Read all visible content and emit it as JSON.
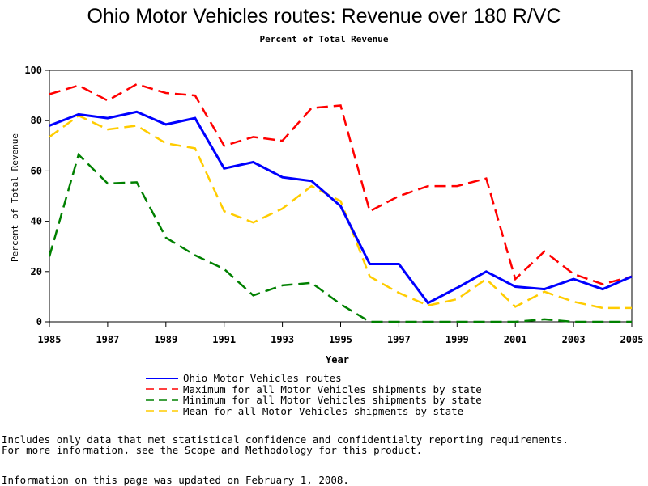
{
  "chart_data": {
    "type": "line",
    "title": "Ohio Motor Vehicles routes: Revenue over 180 R/VC",
    "subtitle": "Percent of Total Revenue",
    "xlabel": "Year",
    "ylabel": "Percent of Total Revenue",
    "xlim": [
      1985,
      2005
    ],
    "ylim": [
      0,
      100
    ],
    "xticks": [
      1985,
      1987,
      1989,
      1991,
      1993,
      1995,
      1997,
      1999,
      2001,
      2003,
      2005
    ],
    "yticks": [
      0,
      20,
      40,
      60,
      80,
      100
    ],
    "grid": false,
    "legend_position": "bottom",
    "x": [
      1985,
      1986,
      1987,
      1988,
      1989,
      1990,
      1991,
      1992,
      1993,
      1994,
      1995,
      1996,
      1997,
      1998,
      1999,
      2000,
      2001,
      2002,
      2003,
      2004,
      2005
    ],
    "series": [
      {
        "name": "Ohio Motor Vehicles routes",
        "color": "#0000ff",
        "style": "solid",
        "values": [
          78,
          82.5,
          81,
          83.5,
          78.5,
          81,
          61,
          63.5,
          57.5,
          56,
          46,
          23,
          23,
          7.5,
          13.5,
          20,
          14,
          13,
          17,
          13,
          18
        ]
      },
      {
        "name": "Maximum for all Motor Vehicles shipments by state",
        "color": "#ff0000",
        "style": "dashed",
        "values": [
          90.5,
          94,
          88,
          94.5,
          91,
          90,
          70,
          73.5,
          72,
          85,
          86,
          44,
          50,
          54,
          54,
          57,
          17,
          28,
          19,
          15,
          18
        ]
      },
      {
        "name": "Minimum for all Motor Vehicles shipments by state",
        "color": "#008000",
        "style": "dashed",
        "values": [
          26,
          66.5,
          55,
          55.5,
          33.5,
          26.5,
          21,
          10.5,
          14.5,
          15.5,
          7,
          0,
          0,
          0,
          0,
          0,
          0,
          1,
          0,
          0,
          0
        ]
      },
      {
        "name": "Mean for all Motor Vehicles shipments by state",
        "color": "#ffcc00",
        "style": "dashed",
        "values": [
          73.5,
          82,
          76.5,
          78,
          71,
          69,
          44,
          39.5,
          45,
          54,
          48,
          18,
          11.5,
          6.5,
          9,
          17,
          6,
          12,
          8,
          5.5,
          5.5
        ]
      }
    ]
  },
  "notes": {
    "line1": "Includes only data that met statistical confidence and confidentialty reporting requirements.",
    "line2": "For more information, see the Scope and Methodology for this product.",
    "line3": "Information on this page was updated on February 1, 2008."
  }
}
